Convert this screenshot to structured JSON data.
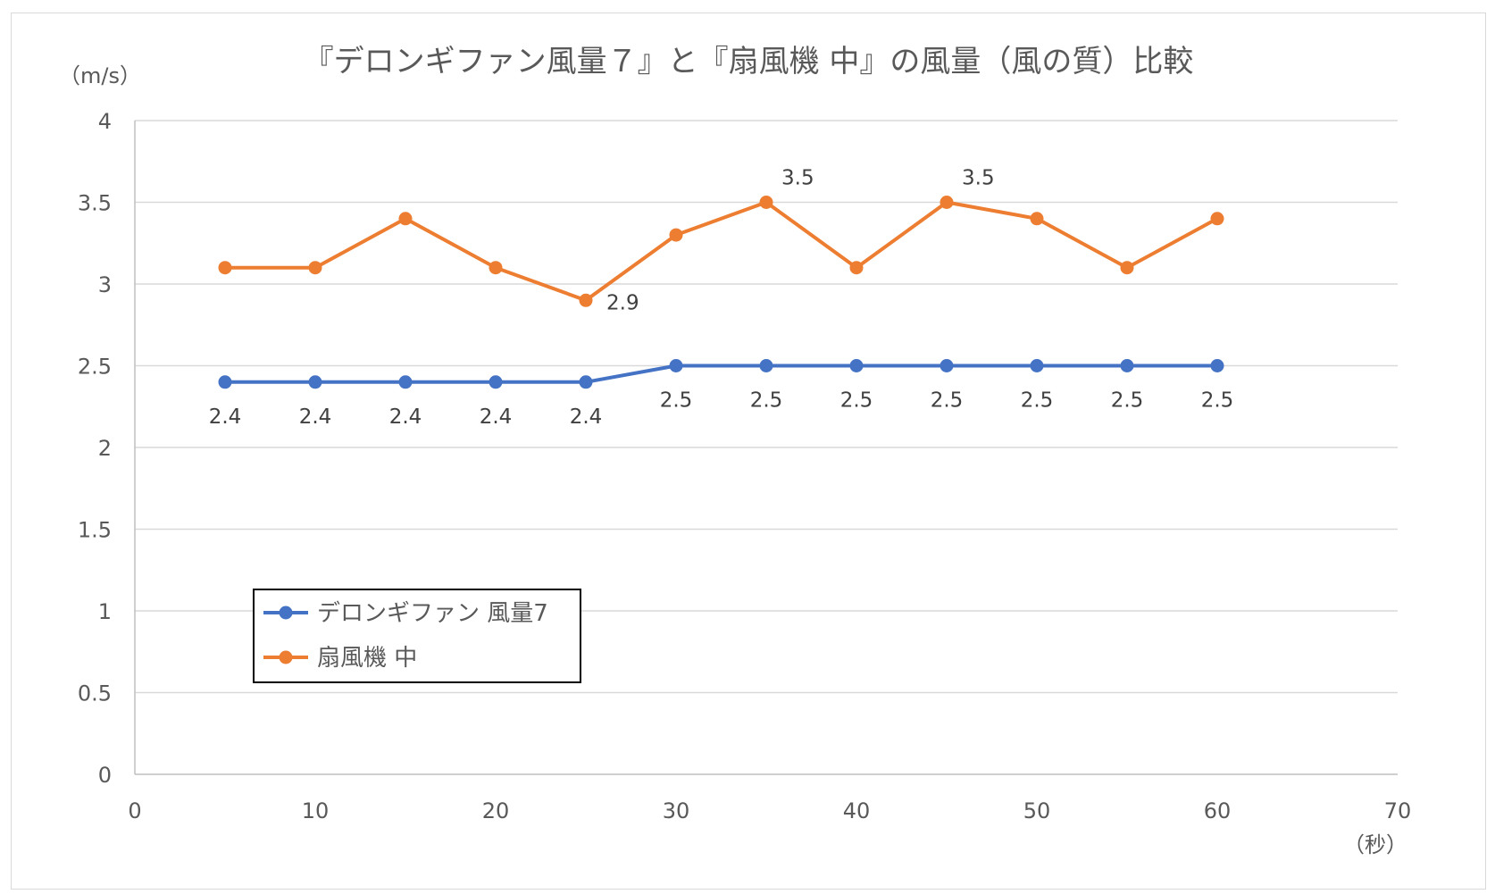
{
  "chart_data": {
    "type": "line",
    "title": "『デロンギファン風量７』と『扇風機 中』の風量（風の質）比較",
    "ylabel": "（m/s）",
    "xlabel": "（秒）",
    "xlim": [
      0,
      70
    ],
    "ylim": [
      0,
      4
    ],
    "x_ticks": [
      0,
      10,
      20,
      30,
      40,
      50,
      60,
      70
    ],
    "y_ticks": [
      0,
      0.5,
      1,
      1.5,
      2,
      2.5,
      3,
      3.5,
      4
    ],
    "grid": "horizontal",
    "legend_position": "bottom-left",
    "series": [
      {
        "name": "デロンギファン 風量7",
        "color": "#4472c4",
        "x": [
          5,
          10,
          15,
          20,
          25,
          30,
          35,
          40,
          45,
          50,
          55,
          60
        ],
        "values": [
          2.4,
          2.4,
          2.4,
          2.4,
          2.4,
          2.5,
          2.5,
          2.5,
          2.5,
          2.5,
          2.5,
          2.5
        ],
        "data_labels": [
          "2.4",
          "2.4",
          "2.4",
          "2.4",
          "2.4",
          "2.5",
          "2.5",
          "2.5",
          "2.5",
          "2.5",
          "2.5",
          "2.5"
        ]
      },
      {
        "name": "扇風機 中",
        "color": "#ed7d31",
        "x": [
          5,
          10,
          15,
          20,
          25,
          30,
          35,
          40,
          45,
          50,
          55,
          60
        ],
        "values": [
          3.1,
          3.1,
          3.4,
          3.1,
          2.9,
          3.3,
          3.5,
          3.1,
          3.5,
          3.4,
          3.1,
          3.4
        ],
        "data_labels": [
          "",
          "",
          "",
          "",
          "2.9",
          "",
          "3.5",
          "",
          "3.5",
          "",
          "",
          ""
        ]
      }
    ]
  }
}
